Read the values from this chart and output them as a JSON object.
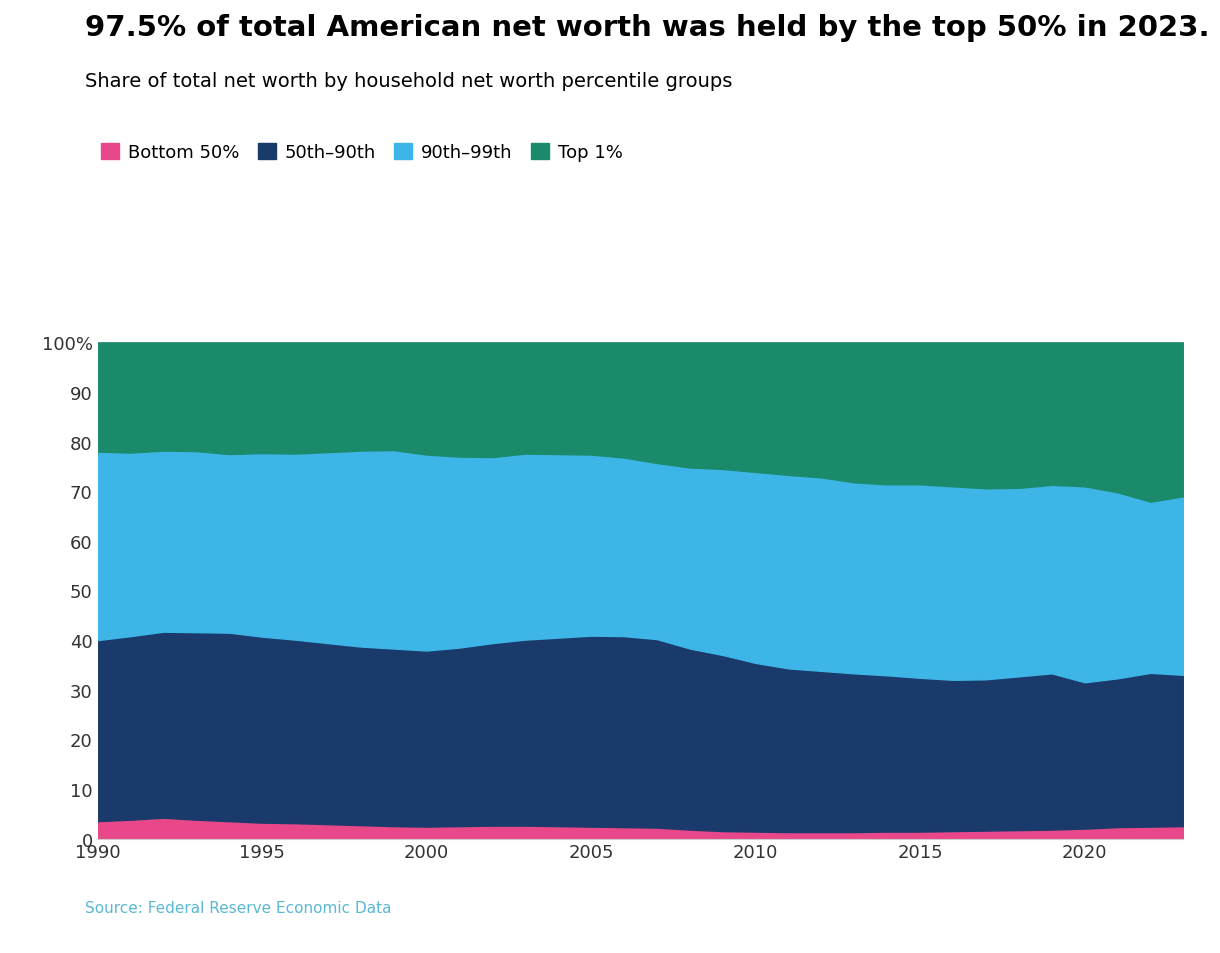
{
  "title": "97.5% of total American net worth was held by the top 50% in 2023.",
  "subtitle": "Share of total net worth by household net worth percentile groups",
  "source_text": "Source: ⁠Federal Reserve Economic Data",
  "legend_labels": [
    "Bottom 50%",
    "50th–90th",
    "90th–99th",
    "Top 1%"
  ],
  "colors": [
    "#e8488a",
    "#1a3a6b",
    "#3db5e6",
    "#1a8a6b"
  ],
  "years": [
    1990,
    1991,
    1992,
    1993,
    1994,
    1995,
    1996,
    1997,
    1998,
    1999,
    2000,
    2001,
    2002,
    2003,
    2004,
    2005,
    2006,
    2007,
    2008,
    2009,
    2010,
    2011,
    2012,
    2013,
    2014,
    2015,
    2016,
    2017,
    2018,
    2019,
    2020,
    2021,
    2022,
    2023
  ],
  "bottom50": [
    3.5,
    3.8,
    4.2,
    3.8,
    3.5,
    3.2,
    3.1,
    2.9,
    2.7,
    2.5,
    2.4,
    2.5,
    2.6,
    2.6,
    2.5,
    2.4,
    2.3,
    2.2,
    1.8,
    1.5,
    1.4,
    1.3,
    1.3,
    1.3,
    1.4,
    1.4,
    1.5,
    1.6,
    1.7,
    1.8,
    2.0,
    2.3,
    2.4,
    2.5
  ],
  "p50to90": [
    36.5,
    37.0,
    37.5,
    37.8,
    38.0,
    37.5,
    37.0,
    36.5,
    36.0,
    35.8,
    35.5,
    36.0,
    36.8,
    37.5,
    38.0,
    38.5,
    38.5,
    38.0,
    36.5,
    35.5,
    34.0,
    33.0,
    32.5,
    32.0,
    31.5,
    31.0,
    30.5,
    30.5,
    31.0,
    31.5,
    29.5,
    30.0,
    31.0,
    30.5
  ],
  "p90to99": [
    38.0,
    37.0,
    36.5,
    36.5,
    36.0,
    37.0,
    37.5,
    38.5,
    39.5,
    40.0,
    39.5,
    38.5,
    37.5,
    37.5,
    37.0,
    36.5,
    36.0,
    35.5,
    36.5,
    37.5,
    38.5,
    39.0,
    39.0,
    38.5,
    38.5,
    39.0,
    39.0,
    38.5,
    38.0,
    38.0,
    39.5,
    37.5,
    34.5,
    36.0
  ],
  "top1": [
    22.0,
    22.2,
    21.8,
    21.9,
    22.5,
    22.3,
    22.4,
    22.1,
    21.8,
    21.7,
    22.6,
    23.0,
    23.1,
    22.4,
    22.5,
    22.6,
    23.2,
    24.3,
    25.2,
    25.5,
    26.1,
    26.7,
    27.2,
    28.2,
    28.6,
    28.6,
    29.0,
    29.4,
    29.3,
    28.7,
    29.0,
    30.2,
    32.1,
    31.0
  ],
  "ylim": [
    0,
    100
  ],
  "ytick_labels": [
    "0",
    "10",
    "20",
    "30",
    "40",
    "50",
    "60",
    "70",
    "80",
    "90",
    "100%"
  ],
  "ytick_values": [
    0,
    10,
    20,
    30,
    40,
    50,
    60,
    70,
    80,
    90,
    100
  ],
  "xtick_values": [
    1990,
    1995,
    2000,
    2005,
    2010,
    2015,
    2020
  ],
  "background_color": "#ffffff",
  "title_fontsize": 21,
  "subtitle_fontsize": 14,
  "legend_fontsize": 13,
  "tick_fontsize": 13,
  "source_fontsize": 11
}
